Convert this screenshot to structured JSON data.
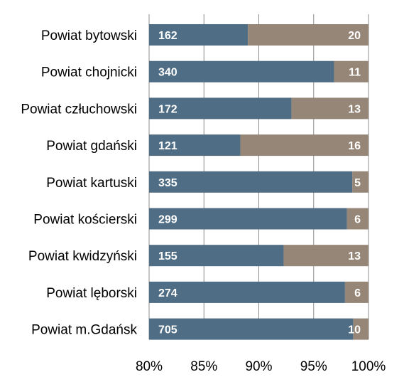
{
  "chart_data": {
    "type": "bar",
    "orientation": "horizontal",
    "stacked": "percent",
    "title": "",
    "xlabel": "",
    "ylabel": "",
    "xlim": [
      0.8,
      1.0
    ],
    "x_ticks": [
      "80%",
      "85%",
      "90%",
      "95%",
      "100%"
    ],
    "grid": true,
    "legend": "none",
    "categories": [
      "Powiat bytowski",
      "Powiat chojnicki",
      "Powiat człuchowski",
      "Powiat gdański",
      "Powiat kartuski",
      "Powiat kościerski",
      "Powiat kwidzyński",
      "Powiat lęborski",
      "Powiat m.Gdańsk"
    ],
    "series": [
      {
        "values": [
          162,
          340,
          172,
          121,
          335,
          299,
          155,
          274,
          705
        ],
        "color": "#4f6d84"
      },
      {
        "values": [
          20,
          11,
          13,
          16,
          5,
          6,
          13,
          6,
          10
        ],
        "color": "#968677"
      }
    ]
  }
}
